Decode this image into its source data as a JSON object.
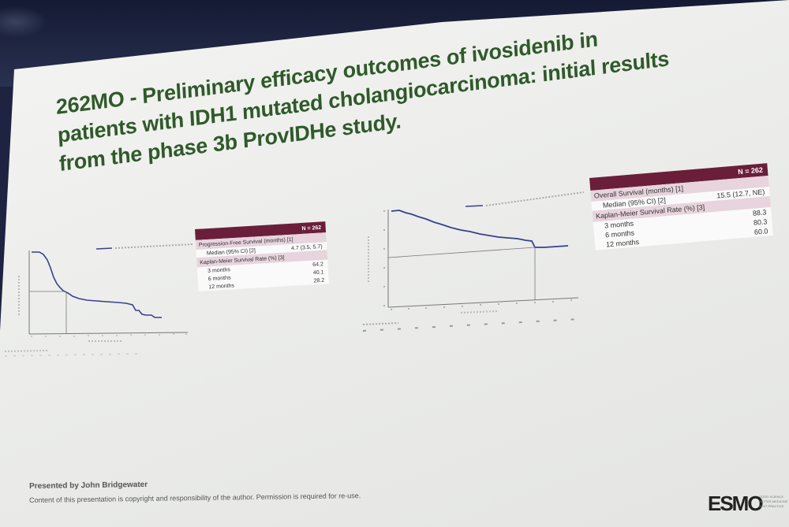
{
  "slide": {
    "title": "262MO - Preliminary efficacy outcomes of ivosidenib in patients with IDH1 mutated cholangiocarcinoma: initial results from the phase 3b ProvIDHe study.",
    "presented_by": "Presented by John Bridgewater",
    "copyright": "Content of this presentation is copyright and responsibility of the author. Permission is required for re-use.",
    "logo": "ESMO",
    "logo_tagline": "GOOD SCIENCE BETTER MEDICINE BEST PRACTICE"
  },
  "pfs_table": {
    "n_header": "N = 262",
    "pfs_label": "Progression-Free Survival (months) [1]",
    "median_label": "Median (95% CI) [2]",
    "median_value": "4.7 (3.5, 5.7)",
    "km_label": "Kaplan-Meier Survival Rate (%) [3]",
    "rows": [
      {
        "label": "3 months",
        "value": "64.2"
      },
      {
        "label": "6 months",
        "value": "40.1"
      },
      {
        "label": "12 months",
        "value": "28.2"
      }
    ]
  },
  "os_table": {
    "n_header": "N = 262",
    "os_label": "Overall Survival (months) [1]",
    "median_label": "Median (95% CI) [2]",
    "median_value": "15.5 (12.7, NE)",
    "km_label": "Kaplan-Meier Survival Rate (%) [3]",
    "rows": [
      {
        "label": "3 months",
        "value": "88.3"
      },
      {
        "label": "6 months",
        "value": "80.3"
      },
      {
        "label": "12 months",
        "value": "60.0"
      }
    ]
  },
  "colors": {
    "title_green": "#2f5a2a",
    "table_header": "#6a1e3a",
    "table_section": "#e7d4dc",
    "curve": "#3a3f8f"
  }
}
